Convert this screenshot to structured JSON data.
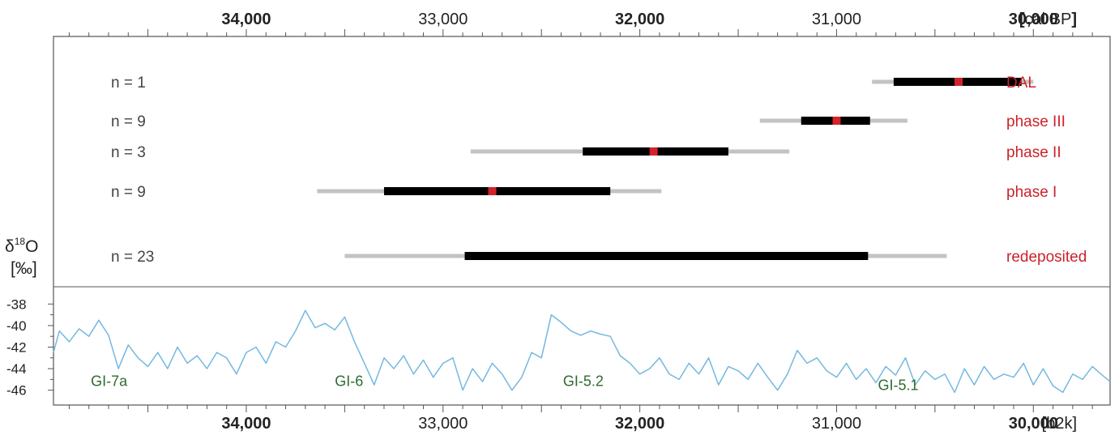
{
  "chart_data": {
    "type": "line",
    "top_axis": {
      "unit": "cal BP",
      "unit_bracket_open": "[",
      "unit_bracket_close": "]",
      "ticks": [
        {
          "value": 34000,
          "label": "34,000",
          "bold": true
        },
        {
          "value": 33000,
          "label": "33,000",
          "bold": false
        },
        {
          "value": 32000,
          "label": "32,000",
          "bold": true
        },
        {
          "value": 31000,
          "label": "31,000",
          "bold": false
        },
        {
          "value": 30000,
          "label": "30,000",
          "bold": true
        }
      ],
      "range": [
        34980,
        29610
      ],
      "reversed": true
    },
    "bottom_axis": {
      "unit": "[b2k]",
      "ticks": [
        {
          "value": 34000,
          "label": "34,000",
          "bold": true
        },
        {
          "value": 33000,
          "label": "33,000",
          "bold": false
        },
        {
          "value": 32000,
          "label": "32,000",
          "bold": true
        },
        {
          "value": 31000,
          "label": "31,000",
          "bold": false
        },
        {
          "value": 30000,
          "label": "30,000",
          "bold": true
        }
      ]
    },
    "colors": {
      "range95": "#c3c3c3",
      "range68": "#000000",
      "median": "#d2232a",
      "phase_label": "#cc2229",
      "curve": "#74b8e0",
      "gi_label": "#2f6b2f"
    },
    "ranges": [
      {
        "n_label": "n = 1",
        "name": "DAL",
        "r95": [
          30820,
          30000
        ],
        "r68": [
          30710,
          30060
        ],
        "median": 30380
      },
      {
        "n_label": "n = 9",
        "name": "phase III",
        "r95": [
          31390,
          30640
        ],
        "r68": [
          31180,
          30830
        ],
        "median": 31000
      },
      {
        "n_label": "n = 3",
        "name": "phase II",
        "r95": [
          32860,
          31240
        ],
        "r68": [
          32290,
          31550
        ],
        "median": 31930
      },
      {
        "n_label": "n = 9",
        "name": "phase I",
        "r95": [
          33640,
          31890
        ],
        "r68": [
          33300,
          32150
        ],
        "median": 32750
      },
      {
        "n_label": "n = 23",
        "name": "redeposited",
        "r95": [
          33500,
          30440
        ],
        "r68": [
          32890,
          30840
        ],
        "median": null
      }
    ],
    "isotope": {
      "ylabel_top": "δ18O",
      "ylabel_symbol": "δ",
      "ylabel_sup": "18",
      "ylabel_elem": "O",
      "ylabel_unit": "[‰]",
      "ylim": [
        -47,
        -37
      ],
      "yticks": [
        {
          "value": -38,
          "label": "-38"
        },
        {
          "value": -40,
          "label": "-40"
        },
        {
          "value": -42,
          "label": "-42"
        },
        {
          "value": -44,
          "label": "-44"
        },
        {
          "value": -46,
          "label": "-46"
        }
      ],
      "series": {
        "x": [
          34980,
          34950,
          34900,
          34850,
          34800,
          34750,
          34700,
          34650,
          34600,
          34550,
          34500,
          34450,
          34400,
          34350,
          34300,
          34250,
          34200,
          34150,
          34100,
          34050,
          34000,
          33950,
          33900,
          33850,
          33800,
          33750,
          33700,
          33650,
          33600,
          33550,
          33500,
          33450,
          33400,
          33350,
          33300,
          33250,
          33200,
          33150,
          33100,
          33050,
          33000,
          32950,
          32900,
          32850,
          32800,
          32750,
          32700,
          32650,
          32600,
          32550,
          32500,
          32450,
          32400,
          32350,
          32300,
          32250,
          32200,
          32150,
          32100,
          32050,
          32000,
          31950,
          31900,
          31850,
          31800,
          31750,
          31700,
          31650,
          31600,
          31550,
          31500,
          31450,
          31400,
          31350,
          31300,
          31250,
          31200,
          31150,
          31100,
          31050,
          31000,
          30950,
          30900,
          30850,
          30800,
          30750,
          30700,
          30650,
          30600,
          30550,
          30500,
          30450,
          30400,
          30350,
          30300,
          30250,
          30200,
          30150,
          30100,
          30050,
          30000,
          29950,
          29900,
          29850,
          29800,
          29750,
          29700,
          29650,
          29610
        ],
        "values": [
          -42.5,
          -40.5,
          -41.5,
          -40.3,
          -41.0,
          -39.5,
          -40.9,
          -44.0,
          -41.8,
          -43.0,
          -43.8,
          -42.5,
          -44.0,
          -42.0,
          -43.5,
          -42.8,
          -44.0,
          -42.5,
          -43.0,
          -44.5,
          -42.5,
          -42.0,
          -43.5,
          -41.5,
          -42.0,
          -40.5,
          -38.6,
          -40.2,
          -39.8,
          -40.4,
          -39.2,
          -41.5,
          -43.5,
          -45.5,
          -43.0,
          -44.0,
          -42.8,
          -44.5,
          -43.2,
          -44.8,
          -43.5,
          -43.0,
          -46.0,
          -44.0,
          -45.2,
          -43.5,
          -44.5,
          -46.0,
          -44.8,
          -42.5,
          -43.0,
          -39.0,
          -39.7,
          -40.5,
          -40.9,
          -40.5,
          -40.8,
          -41.0,
          -42.8,
          -43.5,
          -44.5,
          -44.0,
          -43.0,
          -44.5,
          -45.0,
          -43.5,
          -44.5,
          -43.0,
          -45.5,
          -43.8,
          -44.2,
          -45.0,
          -43.5,
          -44.8,
          -46.0,
          -44.5,
          -42.3,
          -43.5,
          -43.0,
          -44.2,
          -44.8,
          -43.5,
          -45.0,
          -44.0,
          -45.3,
          -43.8,
          -44.6,
          -43.0,
          -45.5,
          -44.2,
          -45.0,
          -44.5,
          -46.2,
          -44.0,
          -45.5,
          -43.8,
          -45.0,
          -44.5,
          -44.8,
          -43.5,
          -45.5,
          -44.0,
          -45.6,
          -46.2,
          -44.5,
          -45.0,
          -43.8,
          -44.6,
          -45.2
        ],
        "name": ""
      },
      "gi_labels": [
        {
          "text": "GI-7a",
          "x": 34790,
          "y": -45.6
        },
        {
          "text": "GI-6",
          "x": 33550,
          "y": -45.6
        },
        {
          "text": "GI-5.2",
          "x": 32390,
          "y": -45.6
        },
        {
          "text": "GI-5.1",
          "x": 30790,
          "y": -46.0
        }
      ]
    }
  }
}
